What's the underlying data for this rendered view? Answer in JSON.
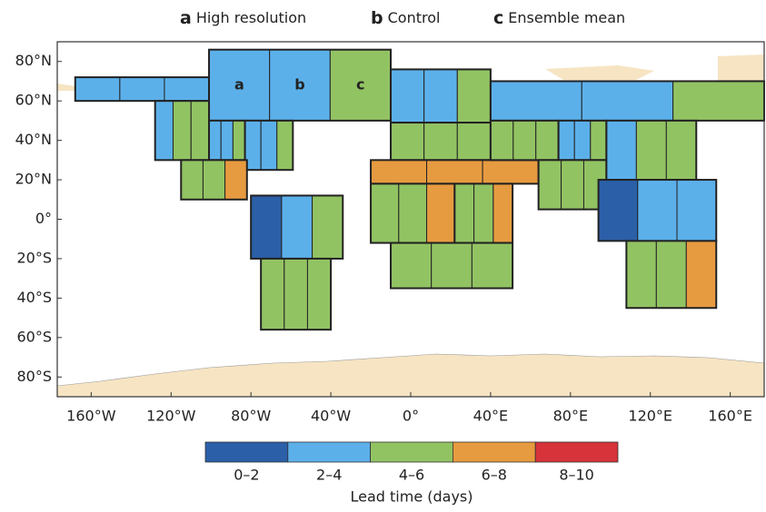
{
  "chart_data": {
    "type": "map",
    "panels": [
      {
        "letter": "a",
        "label": "High resolution"
      },
      {
        "letter": "b",
        "label": "Control"
      },
      {
        "letter": "c",
        "label": "Ensemble mean"
      }
    ],
    "xlim": [
      -177,
      177
    ],
    "ylim": [
      -90,
      90
    ],
    "xticks": [
      {
        "value": -160,
        "label": "160°W"
      },
      {
        "value": -120,
        "label": "120°W"
      },
      {
        "value": -80,
        "label": "80°W"
      },
      {
        "value": -40,
        "label": "40°W"
      },
      {
        "value": 0,
        "label": "0°"
      },
      {
        "value": 40,
        "label": "40°E"
      },
      {
        "value": 80,
        "label": "80°E"
      },
      {
        "value": 120,
        "label": "120°E"
      },
      {
        "value": 160,
        "label": "160°E"
      }
    ],
    "yticks": [
      {
        "value": 80,
        "label": "80°N"
      },
      {
        "value": 60,
        "label": "60°N"
      },
      {
        "value": 40,
        "label": "40°N"
      },
      {
        "value": 20,
        "label": "20°N"
      },
      {
        "value": 0,
        "label": "0°"
      },
      {
        "value": -20,
        "label": "20°S"
      },
      {
        "value": -40,
        "label": "40°S"
      },
      {
        "value": -60,
        "label": "60°S"
      },
      {
        "value": -80,
        "label": "80°S"
      }
    ],
    "colorbar": {
      "title": "Lead time (days)",
      "classes": [
        "0–2",
        "2–4",
        "4–6",
        "6–8",
        "8–10"
      ],
      "colors": [
        "#2b5fa8",
        "#5cb0ea",
        "#92c363",
        "#e79b40",
        "#d6333b"
      ]
    },
    "regions": [
      {
        "lon": [
          -168,
          -101
        ],
        "lat": [
          60,
          72
        ],
        "cells": [
          1,
          1,
          1
        ]
      },
      {
        "lon": [
          -101,
          -10
        ],
        "lat": [
          50,
          86
        ],
        "cells": [
          1,
          1,
          2
        ],
        "cell_labels": [
          "a",
          "b",
          "c"
        ]
      },
      {
        "lon": [
          -128,
          -101
        ],
        "lat": [
          30,
          60
        ],
        "cells": [
          1,
          2,
          2
        ]
      },
      {
        "lon": [
          -101,
          -83
        ],
        "lat": [
          30,
          50
        ],
        "cells": [
          1,
          1,
          2
        ]
      },
      {
        "lon": [
          -83,
          -59
        ],
        "lat": [
          25,
          50
        ],
        "cells": [
          1,
          1,
          2
        ]
      },
      {
        "lon": [
          -115,
          -82
        ],
        "lat": [
          10,
          30
        ],
        "cells": [
          2,
          2,
          3
        ]
      },
      {
        "lon": [
          -80,
          -34
        ],
        "lat": [
          -20,
          12
        ],
        "cells": [
          0,
          1,
          2
        ]
      },
      {
        "lon": [
          -75,
          -40
        ],
        "lat": [
          -56,
          -20
        ],
        "cells": [
          2,
          2,
          2
        ]
      },
      {
        "lon": [
          -10,
          40
        ],
        "lat": [
          49,
          76
        ],
        "cells": [
          1,
          1,
          2
        ]
      },
      {
        "lon": [
          -10,
          40
        ],
        "lat": [
          30,
          49
        ],
        "cells": [
          2,
          2,
          2
        ]
      },
      {
        "lon": [
          -20,
          64
        ],
        "lat": [
          18,
          30
        ],
        "cells": [
          3,
          3,
          3
        ]
      },
      {
        "lon": [
          -20,
          22
        ],
        "lat": [
          -12,
          18
        ],
        "cells": [
          2,
          2,
          3
        ]
      },
      {
        "lon": [
          22,
          51
        ],
        "lat": [
          -12,
          18
        ],
        "cells": [
          2,
          2,
          3
        ]
      },
      {
        "lon": [
          -10,
          51
        ],
        "lat": [
          -35,
          -12
        ],
        "cells": [
          2,
          2,
          2
        ]
      },
      {
        "lon": [
          40,
          177
        ],
        "lat": [
          50,
          70
        ],
        "cells": [
          1,
          1,
          2
        ]
      },
      {
        "lon": [
          40,
          74
        ],
        "lat": [
          30,
          50
        ],
        "cells": [
          2,
          2,
          2
        ]
      },
      {
        "lon": [
          74,
          98
        ],
        "lat": [
          30,
          50
        ],
        "cells": [
          1,
          1,
          2
        ]
      },
      {
        "lon": [
          64,
          98
        ],
        "lat": [
          5,
          30
        ],
        "cells": [
          2,
          2,
          2
        ]
      },
      {
        "lon": [
          98,
          143
        ],
        "lat": [
          20,
          50
        ],
        "cells": [
          1,
          2,
          2
        ]
      },
      {
        "lon": [
          94,
          153
        ],
        "lat": [
          -11,
          20
        ],
        "cells": [
          0,
          1,
          1
        ]
      },
      {
        "lon": [
          108,
          153
        ],
        "lat": [
          -45,
          -11
        ],
        "cells": [
          2,
          2,
          3
        ]
      }
    ]
  }
}
